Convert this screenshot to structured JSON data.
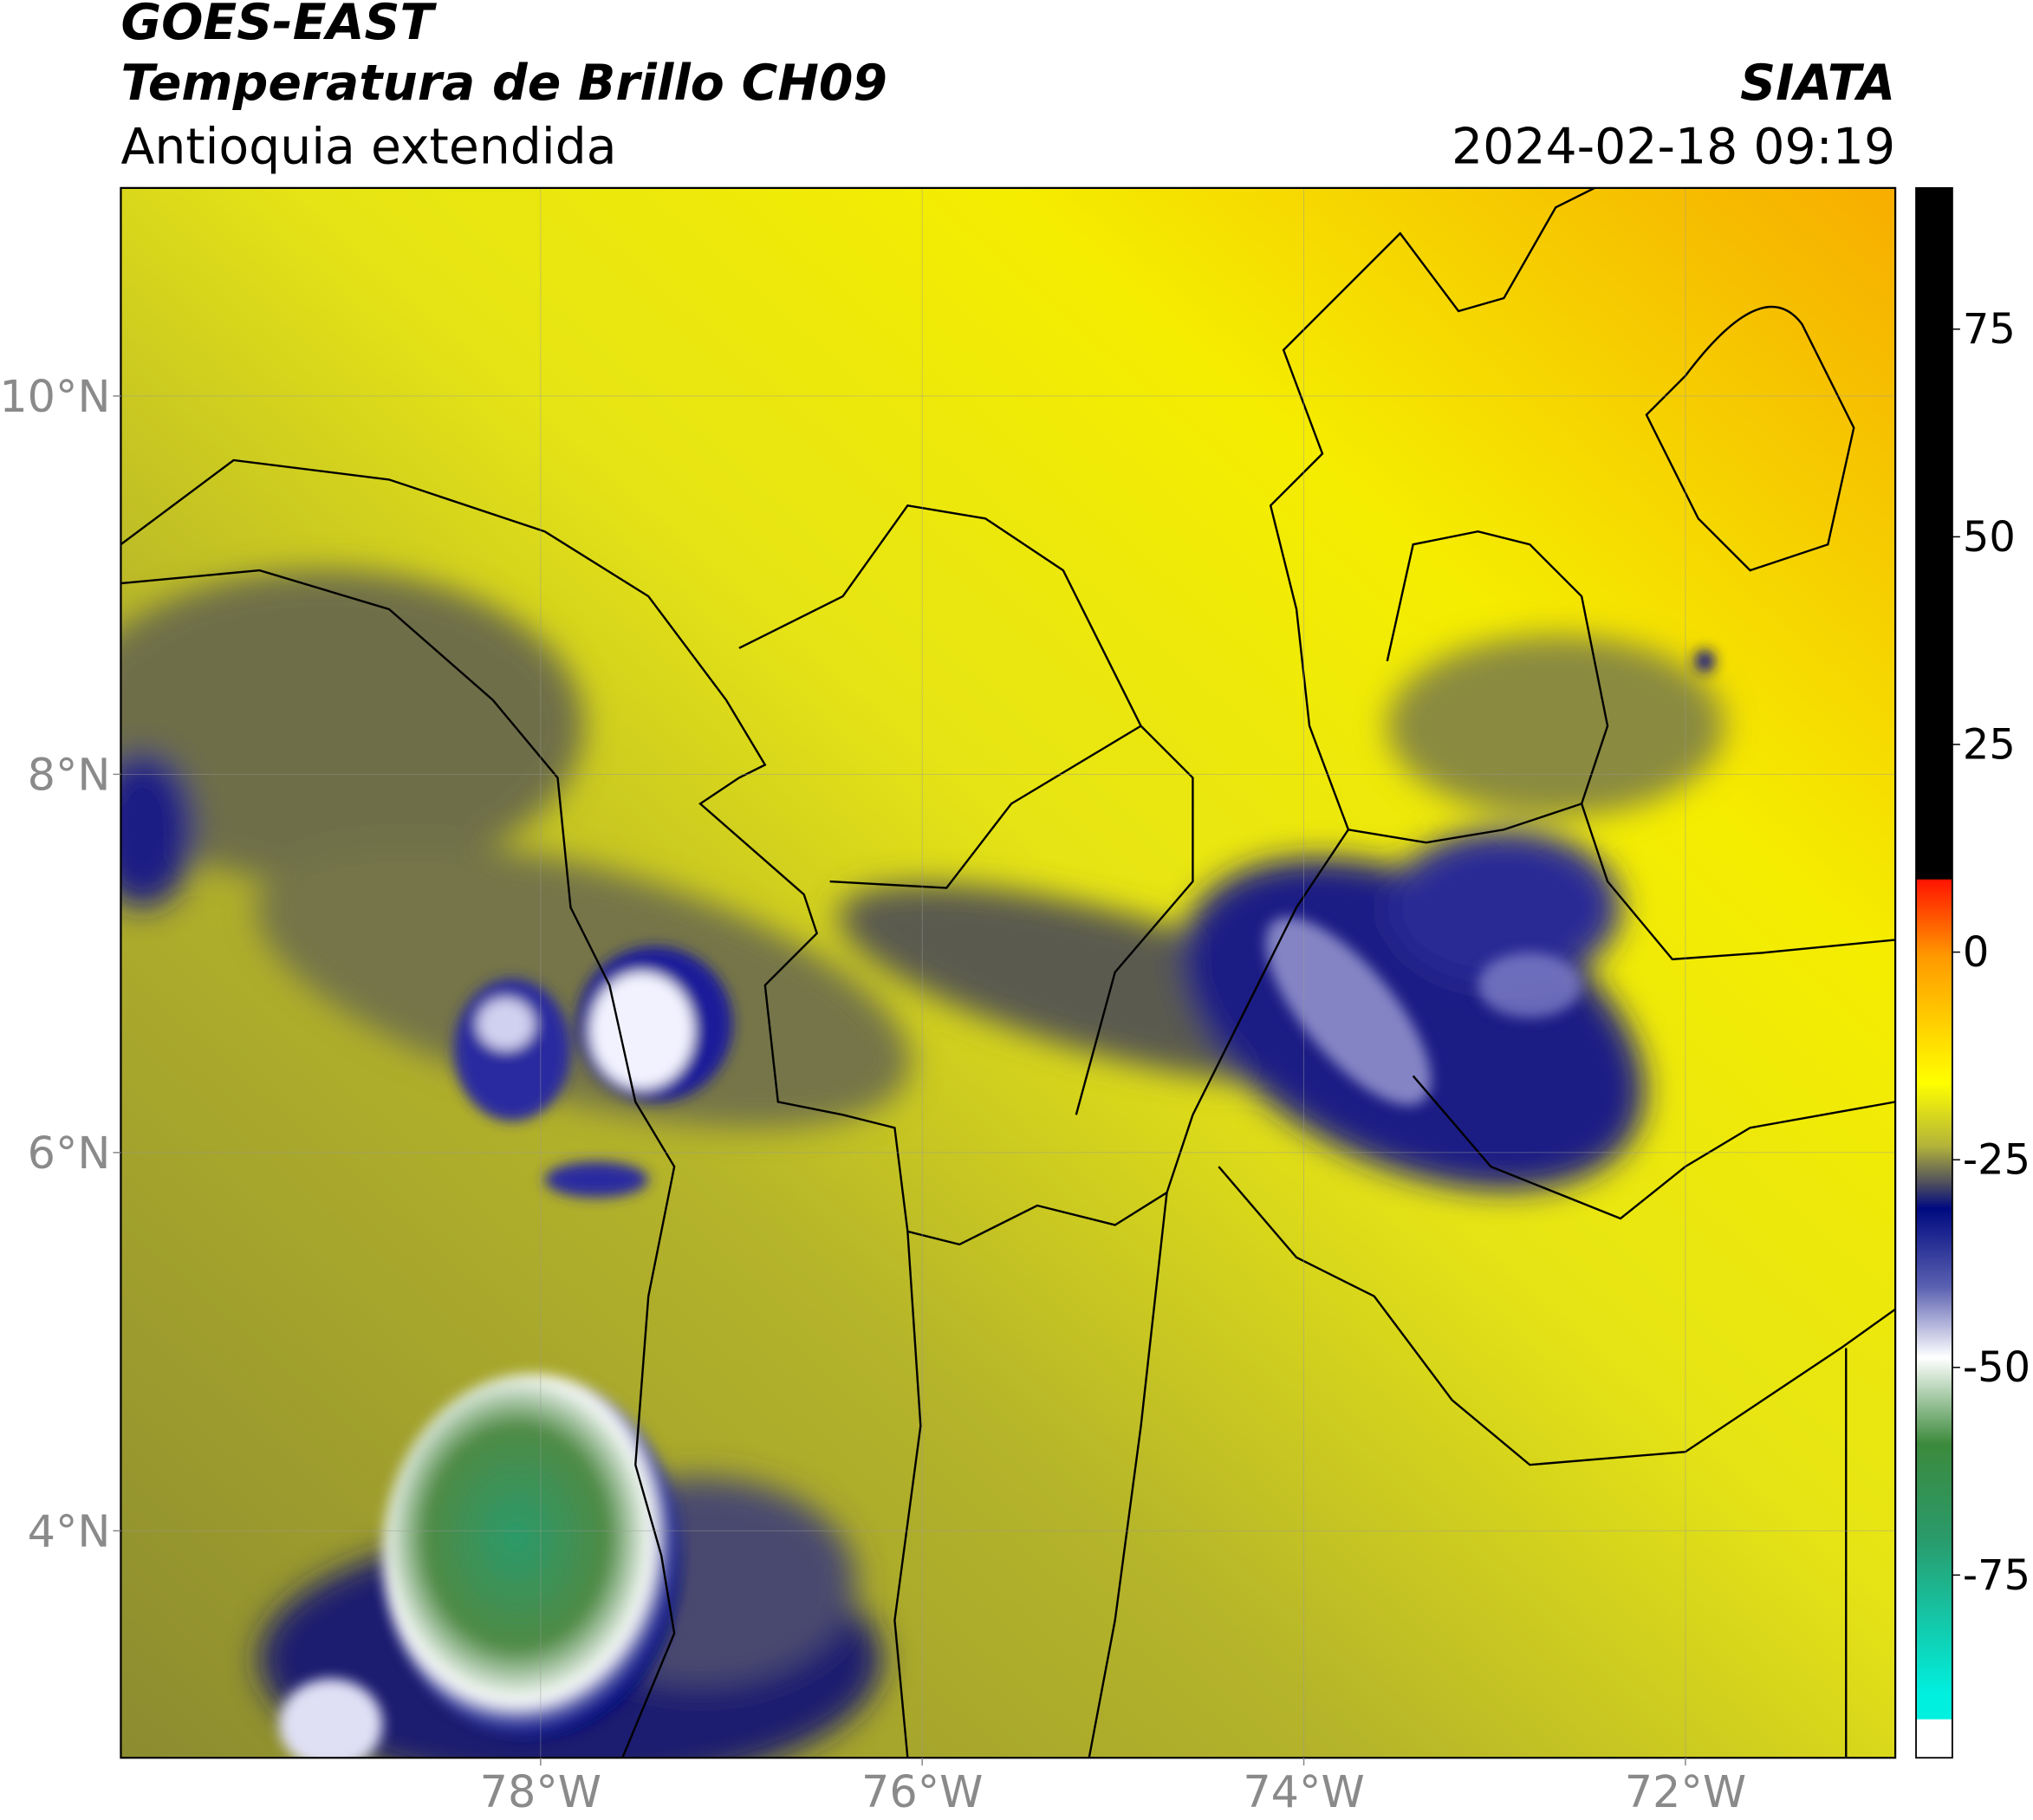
{
  "header": {
    "title": "GOES-EAST",
    "subtitle": "Temperatura de Brillo CH09",
    "region": "Antioquia extendida",
    "source": "SIATA",
    "datetime": "2024-02-18 09:19"
  },
  "map": {
    "xlim": [
      -80.2,
      -70.9
    ],
    "ylim": [
      2.8,
      11.1
    ],
    "xticks": [
      {
        "value": -78,
        "label": "78°W"
      },
      {
        "value": -76,
        "label": "76°W"
      },
      {
        "value": -74,
        "label": "74°W"
      },
      {
        "value": -72,
        "label": "72°W"
      }
    ],
    "yticks": [
      {
        "value": 10,
        "label": "10°N"
      },
      {
        "value": 8,
        "label": "8°N"
      },
      {
        "value": 6,
        "label": "6°N"
      },
      {
        "value": 4,
        "label": "4°N"
      }
    ],
    "grid": true
  },
  "colorbar": {
    "lim": [
      -97,
      92
    ],
    "ticks": [
      75,
      50,
      25,
      0,
      -25,
      -50,
      -75
    ]
  }
}
